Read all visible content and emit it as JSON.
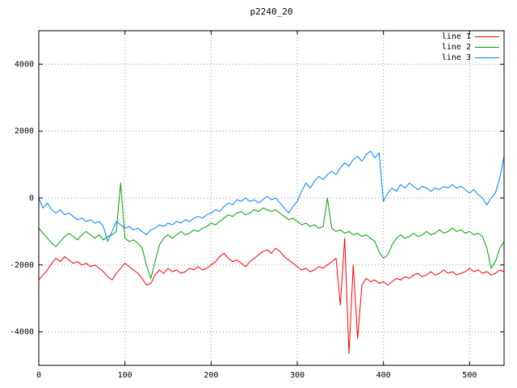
{
  "chart_data": {
    "type": "line",
    "title": "p2240_20",
    "xlabel": "",
    "ylabel": "",
    "xlim": [
      0,
      540
    ],
    "ylim": [
      -5000,
      5000
    ],
    "x_ticks": [
      0,
      100,
      200,
      300,
      400,
      500
    ],
    "y_ticks": [
      -4000,
      -2000,
      0,
      2000,
      4000
    ],
    "grid": true,
    "grid_style": "dotted",
    "legend_position": "top-right",
    "x_start": 0,
    "x_step": 5,
    "series": [
      {
        "name": "line 1",
        "color": "#ff0000",
        "values": [
          -2450,
          -2300,
          -2150,
          -1950,
          -1800,
          -1900,
          -1750,
          -1850,
          -1950,
          -1900,
          -2000,
          -1950,
          -2050,
          -2000,
          -2100,
          -2200,
          -2350,
          -2450,
          -2250,
          -2100,
          -1950,
          -2050,
          -2150,
          -2250,
          -2400,
          -2600,
          -2550,
          -2300,
          -2150,
          -2250,
          -2100,
          -2200,
          -2150,
          -2250,
          -2200,
          -2100,
          -2150,
          -2050,
          -2150,
          -2100,
          -2000,
          -1900,
          -1750,
          -1650,
          -1800,
          -1900,
          -1850,
          -1950,
          -2050,
          -1900,
          -1800,
          -1700,
          -1600,
          -1550,
          -1650,
          -1500,
          -1600,
          -1750,
          -1850,
          -1950,
          -2050,
          -2150,
          -2100,
          -2200,
          -2150,
          -2050,
          -2100,
          -2000,
          -1900,
          -1800,
          -3200,
          -1200,
          -4650,
          -2000,
          -4200,
          -2600,
          -2400,
          -2500,
          -2450,
          -2550,
          -2500,
          -2600,
          -2500,
          -2400,
          -2450,
          -2350,
          -2400,
          -2300,
          -2250,
          -2350,
          -2300,
          -2200,
          -2300,
          -2250,
          -2150,
          -2250,
          -2200,
          -2300,
          -2250,
          -2200,
          -2100,
          -2200,
          -2150,
          -2250,
          -2200,
          -2300,
          -2250,
          -2150,
          -2200
        ]
      },
      {
        "name": "line 2",
        "color": "#00a000",
        "values": [
          -900,
          -1050,
          -1200,
          -1350,
          -1450,
          -1300,
          -1150,
          -1050,
          -1150,
          -1250,
          -1100,
          -1000,
          -1100,
          -1200,
          -1100,
          -1250,
          -1150,
          -1100,
          -1000,
          450,
          -1200,
          -1300,
          -1250,
          -1350,
          -1500,
          -2000,
          -2400,
          -1900,
          -1400,
          -1200,
          -1100,
          -1200,
          -1100,
          -1000,
          -1100,
          -1050,
          -950,
          -1000,
          -900,
          -850,
          -750,
          -800,
          -700,
          -600,
          -500,
          -550,
          -450,
          -400,
          -500,
          -450,
          -350,
          -400,
          -300,
          -350,
          -400,
          -350,
          -450,
          -550,
          -650,
          -600,
          -700,
          -800,
          -750,
          -850,
          -800,
          -900,
          -850,
          0,
          -900,
          -1000,
          -950,
          -1050,
          -1000,
          -1100,
          -1050,
          -1150,
          -1100,
          -1200,
          -1300,
          -1600,
          -1800,
          -1700,
          -1400,
          -1200,
          -1100,
          -1200,
          -1150,
          -1050,
          -1150,
          -1100,
          -1000,
          -1100,
          -1050,
          -950,
          -1050,
          -1000,
          -900,
          -1000,
          -950,
          -1050,
          -1000,
          -1100,
          -1050,
          -1150,
          -1500,
          -2100,
          -1900,
          -1500,
          -1300
        ]
      },
      {
        "name": "line 3",
        "color": "#0080ff",
        "values": [
          0,
          -300,
          -150,
          -350,
          -450,
          -350,
          -500,
          -450,
          -550,
          -650,
          -600,
          -700,
          -650,
          -750,
          -700,
          -850,
          -1300,
          -1000,
          -700,
          -800,
          -900,
          -850,
          -950,
          -900,
          -1000,
          -1100,
          -950,
          -900,
          -800,
          -850,
          -750,
          -800,
          -700,
          -750,
          -650,
          -700,
          -600,
          -550,
          -600,
          -500,
          -450,
          -350,
          -400,
          -250,
          -150,
          -200,
          -50,
          -100,
          0,
          -100,
          -50,
          -150,
          -50,
          50,
          -50,
          0,
          -150,
          -300,
          -450,
          -250,
          -100,
          200,
          450,
          300,
          500,
          650,
          550,
          700,
          800,
          700,
          900,
          1050,
          950,
          1150,
          1250,
          1100,
          1300,
          1400,
          1200,
          1350,
          -100,
          150,
          300,
          200,
          400,
          300,
          450,
          350,
          250,
          350,
          300,
          200,
          300,
          250,
          350,
          300,
          400,
          300,
          350,
          250,
          150,
          250,
          100,
          0,
          -200,
          0,
          150,
          600,
          1250
        ]
      }
    ]
  }
}
